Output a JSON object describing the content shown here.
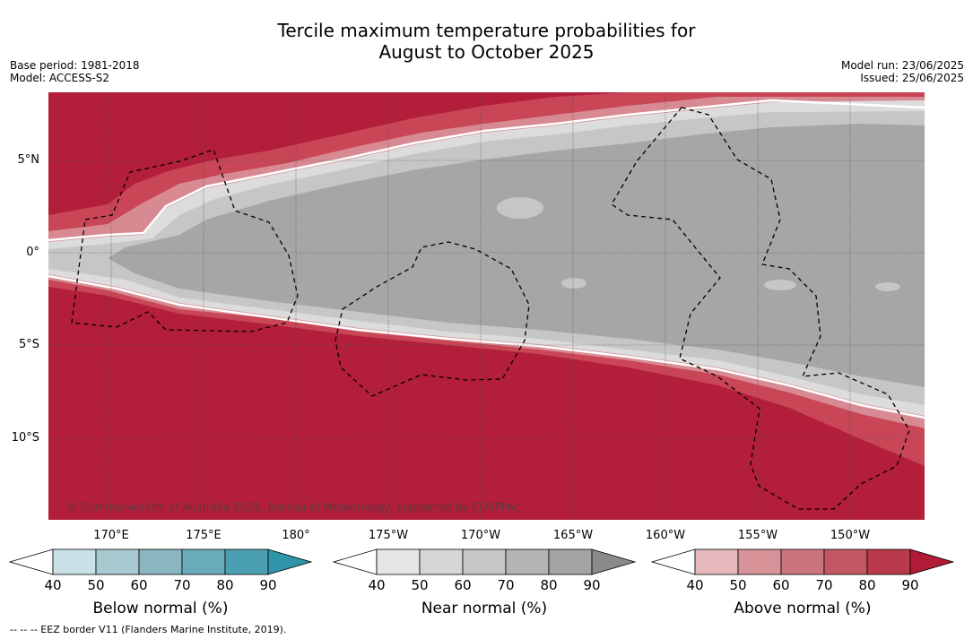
{
  "title": {
    "line1": "Tercile maximum temperature probabilities for",
    "line2": "August to October 2025"
  },
  "meta": {
    "base_period": "Base period: 1981-2018",
    "model": "Model: ACCESS-S2",
    "model_run": "Model run: 23/06/2025",
    "issued": "Issued: 25/06/2025"
  },
  "map": {
    "lat_labels": [
      "5°N",
      "0°",
      "5°S",
      "10°S"
    ],
    "lon_labels": [
      "170°E",
      "175°E",
      "180°",
      "175°W",
      "170°W",
      "165°W",
      "160°W",
      "155°W",
      "150°W"
    ],
    "copyright": "© Commonwealth of Australia 2025, Bureau of Meteorology, supported by COSPPac",
    "colors": {
      "above_high": "#b31e3a",
      "above_mid": "#c84656",
      "above_low": "#d88a92",
      "near_high": "#a6a6a6",
      "near_mid": "#c6c6c6",
      "near_low": "#dcdcdc"
    }
  },
  "colorbars": [
    {
      "label": "Below normal (%)",
      "ticks": [
        "40",
        "50",
        "60",
        "70",
        "80",
        "90"
      ],
      "colors": [
        "#c9e1e7",
        "#a8c9cf",
        "#89b6bf",
        "#6aacb9",
        "#4aa0b1",
        "#2f94a8"
      ]
    },
    {
      "label": "Near normal (%)",
      "ticks": [
        "40",
        "50",
        "60",
        "70",
        "80",
        "90"
      ],
      "colors": [
        "#e6e6e6",
        "#d6d6d6",
        "#c6c6c6",
        "#b4b4b4",
        "#a4a4a4",
        "#8a8a8a"
      ]
    },
    {
      "label": "Above normal (%)",
      "ticks": [
        "40",
        "50",
        "60",
        "70",
        "80",
        "90"
      ],
      "colors": [
        "#e4b8bd",
        "#d79398",
        "#ca757d",
        "#c25762",
        "#ba3a4b",
        "#b01c38"
      ]
    }
  ],
  "footer": {
    "eez_note": "--  --  -- EEZ border V11 (Flanders Marine Institute, 2019)."
  }
}
